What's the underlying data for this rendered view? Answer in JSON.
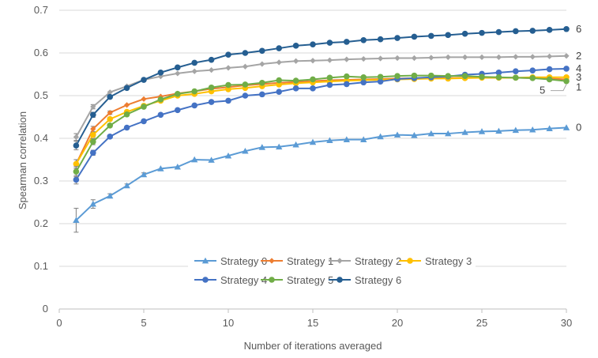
{
  "chart_data": {
    "type": "line",
    "xlabel": "Number of iterations averaged",
    "ylabel": "Spearman correlation",
    "xlim": [
      0,
      30
    ],
    "ylim": [
      0,
      0.7
    ],
    "x_ticks": [
      0,
      5,
      10,
      15,
      20,
      25,
      30
    ],
    "y_ticks": [
      0,
      0.1,
      0.2,
      0.3,
      0.4,
      0.5,
      0.6,
      0.7
    ],
    "y_tick_labels": [
      "0",
      "0.1",
      "0.2",
      "0.3",
      "0.4",
      "0.5",
      "0.6",
      "0.7"
    ],
    "grid": "horizontal",
    "legend_position": "bottom-right",
    "x": [
      1,
      2,
      3,
      4,
      5,
      6,
      7,
      8,
      9,
      10,
      11,
      12,
      13,
      14,
      15,
      16,
      17,
      18,
      19,
      20,
      21,
      22,
      23,
      24,
      25,
      26,
      27,
      28,
      29,
      30
    ],
    "series": [
      {
        "name": "Strategy 0",
        "end_label": "0",
        "color": "#5B9BD5",
        "marker": "triangle",
        "values": [
          0.208,
          0.246,
          0.265,
          0.289,
          0.315,
          0.329,
          0.333,
          0.35,
          0.349,
          0.359,
          0.37,
          0.379,
          0.38,
          0.385,
          0.391,
          0.395,
          0.397,
          0.397,
          0.404,
          0.408,
          0.407,
          0.411,
          0.411,
          0.414,
          0.416,
          0.417,
          0.419,
          0.42,
          0.423,
          0.425
        ],
        "err": [
          0.028,
          0.01,
          0.005,
          0.004,
          0.004,
          0.003,
          0.003,
          0.003,
          0.003,
          0.003,
          0.003,
          0.003,
          0.002,
          0.002,
          0.002,
          0.002,
          0.002,
          0.002,
          0.002,
          0.002,
          0.002,
          0.002,
          0.002,
          0.002,
          0.002,
          0.002,
          0.002,
          0.002,
          0.002,
          0.002
        ]
      },
      {
        "name": "Strategy 1",
        "end_label": "1",
        "color": "#ED7D31",
        "marker": "diamond",
        "values": [
          0.34,
          0.422,
          0.46,
          0.478,
          0.492,
          0.498,
          0.505,
          0.51,
          0.516,
          0.52,
          0.524,
          0.527,
          0.53,
          0.532,
          0.534,
          0.536,
          0.537,
          0.538,
          0.539,
          0.54,
          0.541,
          0.541,
          0.541,
          0.542,
          0.542,
          0.542,
          0.542,
          0.541,
          0.54,
          0.538
        ],
        "err": [
          0.01,
          0.006,
          0.004,
          0.003,
          0.003,
          0.002,
          0.002,
          0.002,
          0.002,
          0.002,
          0.002,
          0.002,
          0.002,
          0.002,
          0.002,
          0.002,
          0.002,
          0.002,
          0.002,
          0.002,
          0.002,
          0.002,
          0.002,
          0.002,
          0.002,
          0.002,
          0.002,
          0.002,
          0.002,
          0.002
        ]
      },
      {
        "name": "Strategy 2",
        "end_label": "2",
        "color": "#A5A5A5",
        "marker": "diamond",
        "values": [
          0.403,
          0.474,
          0.508,
          0.522,
          0.537,
          0.545,
          0.552,
          0.557,
          0.56,
          0.565,
          0.568,
          0.574,
          0.578,
          0.581,
          0.582,
          0.583,
          0.585,
          0.586,
          0.587,
          0.588,
          0.588,
          0.589,
          0.59,
          0.59,
          0.59,
          0.59,
          0.591,
          0.591,
          0.592,
          0.593
        ],
        "err": [
          0.008,
          0.005,
          0.003,
          0.003,
          0.002,
          0.002,
          0.002,
          0.002,
          0.002,
          0.002,
          0.002,
          0.002,
          0.002,
          0.002,
          0.002,
          0.002,
          0.002,
          0.002,
          0.002,
          0.002,
          0.002,
          0.002,
          0.002,
          0.002,
          0.002,
          0.002,
          0.002,
          0.002,
          0.002,
          0.002
        ]
      },
      {
        "name": "Strategy 3",
        "end_label": "3",
        "color": "#FFC000",
        "marker": "circle",
        "values": [
          0.34,
          0.408,
          0.445,
          0.462,
          0.476,
          0.488,
          0.5,
          0.504,
          0.51,
          0.515,
          0.518,
          0.522,
          0.526,
          0.529,
          0.531,
          0.533,
          0.535,
          0.536,
          0.537,
          0.538,
          0.539,
          0.54,
          0.54,
          0.541,
          0.542,
          0.542,
          0.542,
          0.543,
          0.543,
          0.543
        ],
        "err": [
          0.01,
          0.006,
          0.004,
          0.003,
          0.003,
          0.002,
          0.002,
          0.002,
          0.002,
          0.002,
          0.002,
          0.002,
          0.002,
          0.002,
          0.002,
          0.002,
          0.002,
          0.002,
          0.002,
          0.002,
          0.002,
          0.002,
          0.002,
          0.002,
          0.002,
          0.002,
          0.002,
          0.002,
          0.002,
          0.002
        ]
      },
      {
        "name": "Strategy 4",
        "end_label": "4",
        "color": "#4472C4",
        "marker": "circle",
        "values": [
          0.303,
          0.366,
          0.404,
          0.425,
          0.44,
          0.455,
          0.466,
          0.477,
          0.485,
          0.488,
          0.5,
          0.503,
          0.509,
          0.517,
          0.517,
          0.525,
          0.527,
          0.531,
          0.533,
          0.539,
          0.541,
          0.543,
          0.545,
          0.549,
          0.551,
          0.554,
          0.557,
          0.559,
          0.562,
          0.563
        ],
        "err": [
          0.01,
          0.006,
          0.004,
          0.003,
          0.003,
          0.002,
          0.002,
          0.002,
          0.002,
          0.002,
          0.002,
          0.002,
          0.002,
          0.002,
          0.002,
          0.002,
          0.002,
          0.002,
          0.002,
          0.002,
          0.002,
          0.002,
          0.002,
          0.002,
          0.002,
          0.002,
          0.002,
          0.002,
          0.002,
          0.002
        ]
      },
      {
        "name": "Strategy 5",
        "end_label": "5",
        "color": "#70AD47",
        "marker": "circle",
        "values": [
          0.322,
          0.392,
          0.43,
          0.456,
          0.474,
          0.491,
          0.504,
          0.51,
          0.519,
          0.525,
          0.526,
          0.53,
          0.536,
          0.535,
          0.538,
          0.542,
          0.545,
          0.543,
          0.544,
          0.546,
          0.547,
          0.547,
          0.546,
          0.546,
          0.544,
          0.543,
          0.542,
          0.541,
          0.538,
          0.534
        ],
        "err": [
          0.012,
          0.007,
          0.004,
          0.003,
          0.003,
          0.002,
          0.002,
          0.002,
          0.002,
          0.002,
          0.002,
          0.002,
          0.002,
          0.002,
          0.002,
          0.002,
          0.002,
          0.002,
          0.002,
          0.002,
          0.002,
          0.002,
          0.002,
          0.002,
          0.002,
          0.002,
          0.002,
          0.002,
          0.002,
          0.002
        ]
      },
      {
        "name": "Strategy 6",
        "end_label": "6",
        "color": "#255E91",
        "marker": "circle",
        "values": [
          0.383,
          0.455,
          0.497,
          0.518,
          0.537,
          0.554,
          0.566,
          0.577,
          0.584,
          0.596,
          0.6,
          0.605,
          0.611,
          0.617,
          0.62,
          0.624,
          0.626,
          0.63,
          0.632,
          0.635,
          0.638,
          0.64,
          0.642,
          0.645,
          0.647,
          0.649,
          0.651,
          0.652,
          0.654,
          0.656
        ],
        "err": [
          0.01,
          0.006,
          0.004,
          0.003,
          0.003,
          0.002,
          0.002,
          0.002,
          0.002,
          0.002,
          0.002,
          0.002,
          0.002,
          0.002,
          0.002,
          0.002,
          0.002,
          0.002,
          0.002,
          0.002,
          0.002,
          0.002,
          0.002,
          0.002,
          0.002,
          0.002,
          0.002,
          0.002,
          0.002,
          0.002
        ]
      }
    ],
    "legend": {
      "rows": [
        [
          "Strategy 0",
          "Strategy 1",
          "Strategy 2",
          "Strategy 3"
        ],
        [
          "Strategy 4",
          "Strategy 5",
          "Strategy 6"
        ]
      ]
    }
  }
}
